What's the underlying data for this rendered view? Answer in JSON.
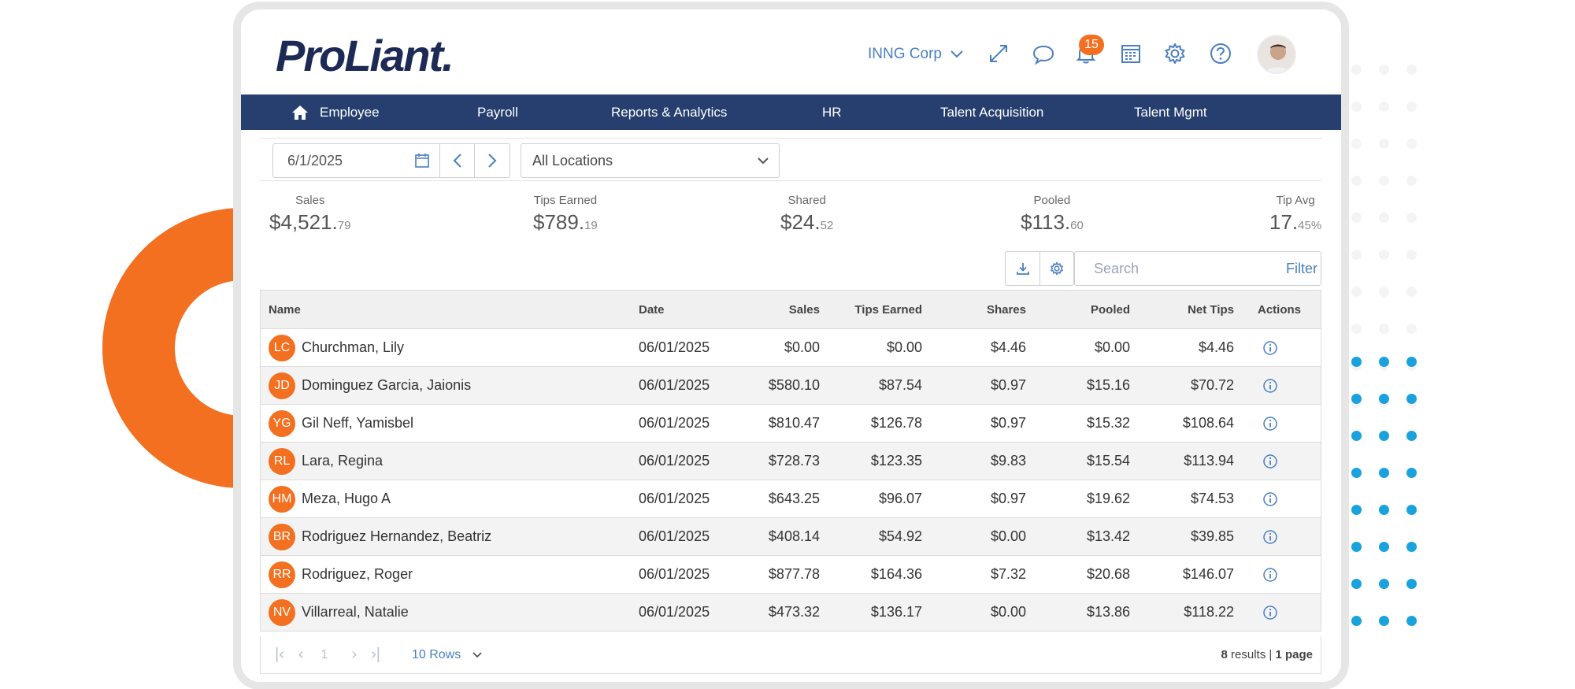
{
  "brand": {
    "logo_text": "ProLiant.",
    "accent": "#f37021",
    "nav_bg": "#263f6e",
    "link_blue": "#4a7fc1"
  },
  "header": {
    "company": "INNG Corp",
    "notification_count": "15",
    "icons": [
      "expand-icon",
      "chat-icon",
      "bell-icon",
      "calendar-icon",
      "gear-icon",
      "help-icon"
    ]
  },
  "nav": {
    "items": [
      {
        "label": "Employee",
        "icon": "home-icon"
      },
      {
        "label": "Payroll"
      },
      {
        "label": "Reports & Analytics"
      },
      {
        "label": "HR"
      },
      {
        "label": "Talent Acquisition"
      },
      {
        "label": "Talent Mgmt"
      }
    ]
  },
  "filters": {
    "date": "6/1/2025",
    "location": "All Locations"
  },
  "summary": [
    {
      "label": "Sales",
      "whole": "$4,521.",
      "fraction": "79"
    },
    {
      "label": "Tips Earned",
      "whole": "$789.",
      "fraction": "19"
    },
    {
      "label": "Shared",
      "whole": "$24.",
      "fraction": "52"
    },
    {
      "label": "Pooled",
      "whole": "$113.",
      "fraction": "60"
    },
    {
      "label": "Tip Avg",
      "whole": "17.",
      "fraction": "45%"
    }
  ],
  "search": {
    "placeholder": "Search",
    "filter_label": "Filter"
  },
  "table": {
    "columns": [
      "Name",
      "Date",
      "Sales",
      "Tips Earned",
      "Shares",
      "Pooled",
      "Net Tips",
      "Actions"
    ],
    "rows": [
      {
        "initials": "LC",
        "name": "Churchman, Lily",
        "date": "06/01/2025",
        "sales": "$0.00",
        "tips": "$0.00",
        "shares": "$4.46",
        "pooled": "$0.00",
        "net": "$4.46"
      },
      {
        "initials": "JD",
        "name": "Dominguez Garcia, Jaionis",
        "date": "06/01/2025",
        "sales": "$580.10",
        "tips": "$87.54",
        "shares": "$0.97",
        "pooled": "$15.16",
        "net": "$70.72"
      },
      {
        "initials": "YG",
        "name": "Gil Neff, Yamisbel",
        "date": "06/01/2025",
        "sales": "$810.47",
        "tips": "$126.78",
        "shares": "$0.97",
        "pooled": "$15.32",
        "net": "$108.64"
      },
      {
        "initials": "RL",
        "name": "Lara, Regina",
        "date": "06/01/2025",
        "sales": "$728.73",
        "tips": "$123.35",
        "shares": "$9.83",
        "pooled": "$15.54",
        "net": "$113.94"
      },
      {
        "initials": "HM",
        "name": "Meza, Hugo A",
        "date": "06/01/2025",
        "sales": "$643.25",
        "tips": "$96.07",
        "shares": "$0.97",
        "pooled": "$19.62",
        "net": "$74.53"
      },
      {
        "initials": "BR",
        "name": "Rodriguez Hernandez, Beatriz",
        "date": "06/01/2025",
        "sales": "$408.14",
        "tips": "$54.92",
        "shares": "$0.00",
        "pooled": "$13.42",
        "net": "$39.85"
      },
      {
        "initials": "RR",
        "name": "Rodriguez, Roger",
        "date": "06/01/2025",
        "sales": "$877.78",
        "tips": "$164.36",
        "shares": "$7.32",
        "pooled": "$20.68",
        "net": "$146.07"
      },
      {
        "initials": "NV",
        "name": "Villarreal, Natalie",
        "date": "06/01/2025",
        "sales": "$473.32",
        "tips": "$136.17",
        "shares": "$0.00",
        "pooled": "$13.86",
        "net": "$118.22"
      }
    ]
  },
  "pager": {
    "page": "1",
    "rows_label": "10 Rows",
    "results_count": "8",
    "results_text": "results |",
    "pages_text": "1 page"
  }
}
